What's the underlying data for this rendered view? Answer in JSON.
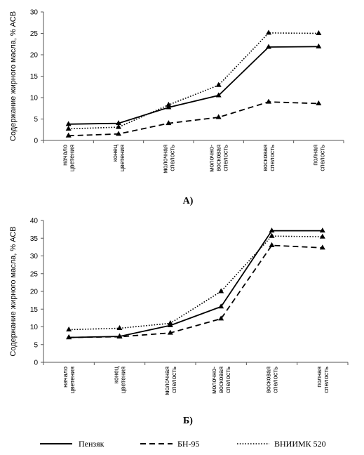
{
  "legend": [
    {
      "name": "Пензяк",
      "style": "solid"
    },
    {
      "name": "БН-95",
      "style": "dashed"
    },
    {
      "name": "ВНИИМК 520",
      "style": "dotted"
    }
  ],
  "chart_data": [
    {
      "type": "line",
      "panel_label": "А)",
      "ylabel": "Содержание жирного масла, % АСВ",
      "ylim": [
        0,
        30
      ],
      "yticks": [
        0,
        5,
        10,
        15,
        20,
        25,
        30
      ],
      "categories": [
        [
          "начало",
          "цветения"
        ],
        [
          "конец",
          "цветения"
        ],
        [
          "молочная",
          "спелость"
        ],
        [
          "молочно-",
          "восковая",
          "спелость"
        ],
        [
          "восковая",
          "спелость"
        ],
        [
          "полная",
          "спелость"
        ]
      ],
      "series": [
        {
          "name": "Пензяк",
          "style": "solid",
          "values": [
            3.8,
            4.0,
            7.7,
            10.5,
            21.8,
            21.9
          ]
        },
        {
          "name": "БН-95",
          "style": "dashed",
          "values": [
            1.1,
            1.5,
            4.0,
            5.4,
            9.0,
            8.6
          ]
        },
        {
          "name": "ВНИИМК 520",
          "style": "dotted",
          "values": [
            2.7,
            3.1,
            8.3,
            12.9,
            25.1,
            25.0
          ]
        }
      ],
      "grid": false
    },
    {
      "type": "line",
      "panel_label": "Б)",
      "ylabel": "Содержание жирного масла, % АСВ",
      "ylim": [
        0,
        40
      ],
      "yticks": [
        0,
        5,
        10,
        15,
        20,
        25,
        30,
        35,
        40
      ],
      "categories": [
        [
          "начало",
          "цветения"
        ],
        [
          "конец",
          "цветения"
        ],
        [
          "молочная",
          "спелость"
        ],
        [
          "молочно-",
          "восковая",
          "спелость"
        ],
        [
          "восковая",
          "спелость"
        ],
        [
          "полная",
          "спелость"
        ]
      ],
      "series": [
        {
          "name": "Пензяк",
          "style": "solid",
          "values": [
            7.0,
            7.3,
            10.4,
            15.7,
            37.1,
            37.1
          ]
        },
        {
          "name": "БН-95",
          "style": "dashed",
          "values": [
            7.0,
            7.2,
            8.3,
            12.3,
            33.0,
            32.3
          ]
        },
        {
          "name": "ВНИИМК 520",
          "style": "dotted",
          "values": [
            9.2,
            9.6,
            11.0,
            20.0,
            35.6,
            35.4
          ]
        }
      ],
      "grid": false
    }
  ]
}
